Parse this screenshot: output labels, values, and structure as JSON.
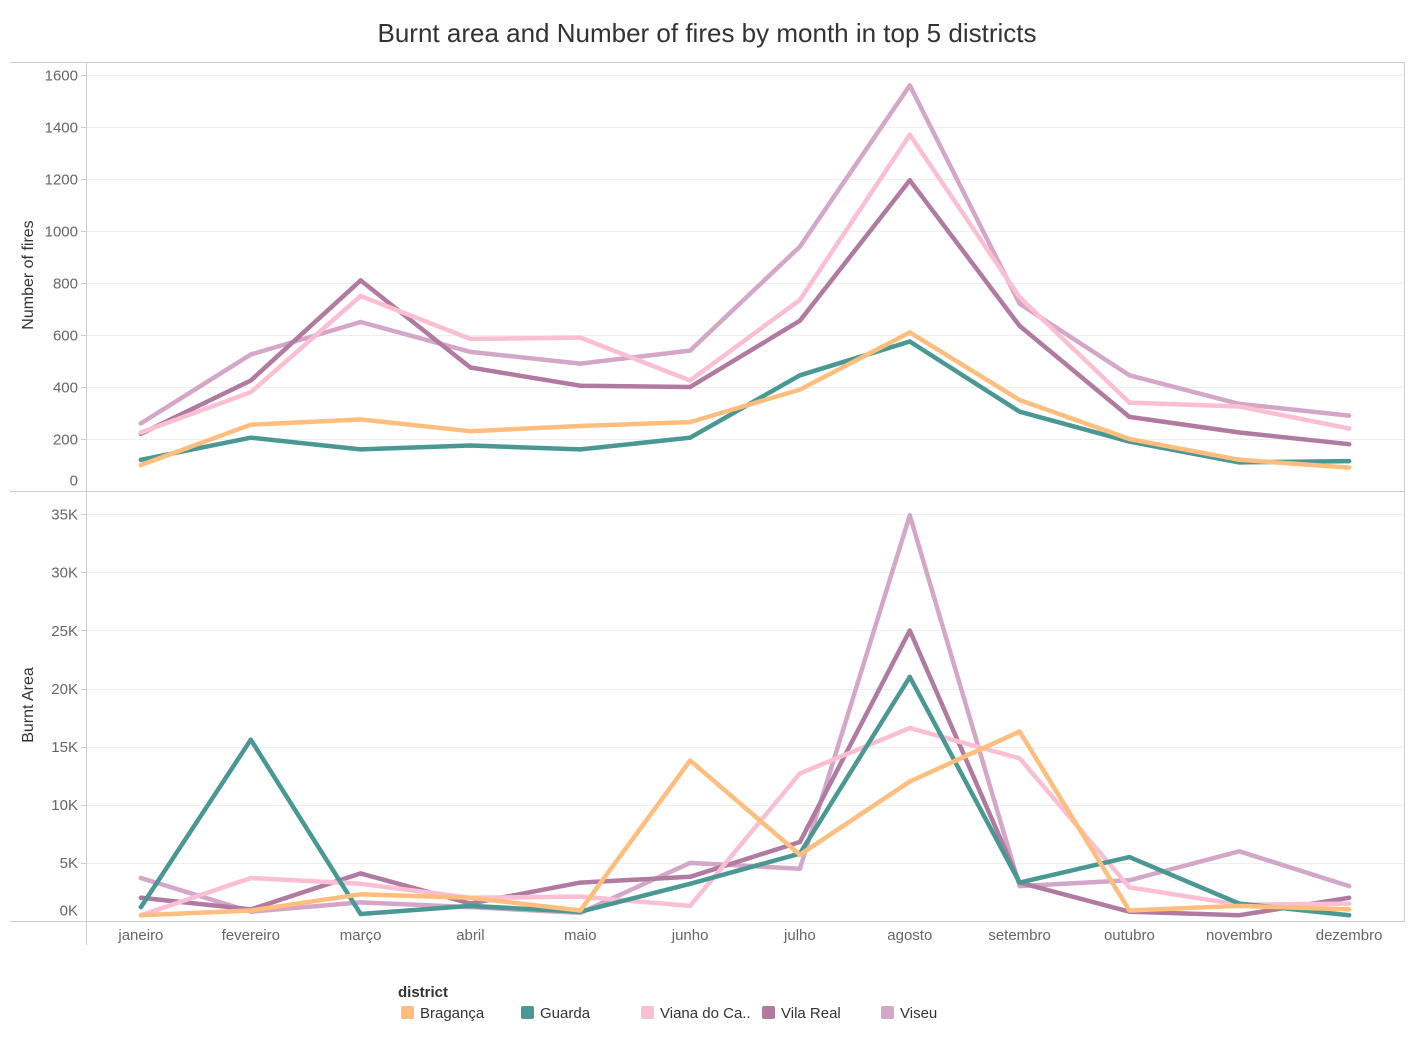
{
  "chart_data": {
    "type": "line",
    "title": "Burnt area and Number of fires by month in top 5 districts",
    "categories": [
      "janeiro",
      "fevereiro",
      "março",
      "abril",
      "maio",
      "junho",
      "julho",
      "agosto",
      "setembro",
      "outubro",
      "novembro",
      "dezembro"
    ],
    "legend": {
      "title": "district",
      "position": "bottom"
    },
    "series": [
      {
        "name": "Bragança",
        "color": "#FFBE7D",
        "number_of_fires": [
          100,
          255,
          275,
          230,
          250,
          265,
          390,
          610,
          350,
          200,
          120,
          90
        ],
        "burnt_area": [
          500,
          900,
          2300,
          2000,
          900,
          13800,
          5700,
          12000,
          16300,
          900,
          1300,
          1000
        ]
      },
      {
        "name": "Guarda",
        "color": "#499894",
        "number_of_fires": [
          120,
          205,
          160,
          175,
          160,
          205,
          445,
          575,
          305,
          190,
          110,
          115
        ],
        "burnt_area": [
          1200,
          15600,
          600,
          1300,
          800,
          3200,
          5800,
          21000,
          3300,
          5500,
          1500,
          500
        ]
      },
      {
        "name": "Viana do Ca..",
        "color": "#FABFD2",
        "number_of_fires": [
          225,
          380,
          750,
          585,
          590,
          425,
          735,
          1370,
          745,
          340,
          325,
          240
        ],
        "burnt_area": [
          500,
          3700,
          3200,
          2000,
          2100,
          1300,
          12700,
          16600,
          14000,
          2900,
          1400,
          1500
        ]
      },
      {
        "name": "Vila Real",
        "color": "#B07AA1",
        "number_of_fires": [
          220,
          425,
          810,
          475,
          405,
          400,
          655,
          1195,
          635,
          285,
          225,
          180
        ],
        "burnt_area": [
          2000,
          1000,
          4100,
          1500,
          3300,
          3800,
          6800,
          25000,
          3300,
          800,
          500,
          2000
        ]
      },
      {
        "name": "Viseu",
        "color": "#D4A6C8",
        "number_of_fires": [
          260,
          525,
          650,
          535,
          490,
          540,
          940,
          1560,
          720,
          445,
          335,
          290
        ],
        "burnt_area": [
          3700,
          800,
          1600,
          1200,
          700,
          5000,
          4500,
          34900,
          3000,
          3500,
          6000,
          3000
        ]
      }
    ],
    "panels": [
      {
        "ylabel": "Number of fires",
        "ylim": [
          0,
          1650
        ],
        "grid": true,
        "yticks": [
          0,
          200,
          400,
          600,
          800,
          1000,
          1200,
          1400,
          1600
        ],
        "ytick_labels": [
          "0",
          "200",
          "400",
          "600",
          "800",
          "1000",
          "1200",
          "1400",
          "1600"
        ]
      },
      {
        "ylabel": "Burnt Area",
        "ylim": [
          0,
          37000
        ],
        "grid": true,
        "yticks": [
          0,
          5000,
          10000,
          15000,
          20000,
          25000,
          30000,
          35000
        ],
        "ytick_labels": [
          "0K",
          "5K",
          "10K",
          "15K",
          "20K",
          "25K",
          "30K",
          "35K"
        ]
      }
    ]
  }
}
